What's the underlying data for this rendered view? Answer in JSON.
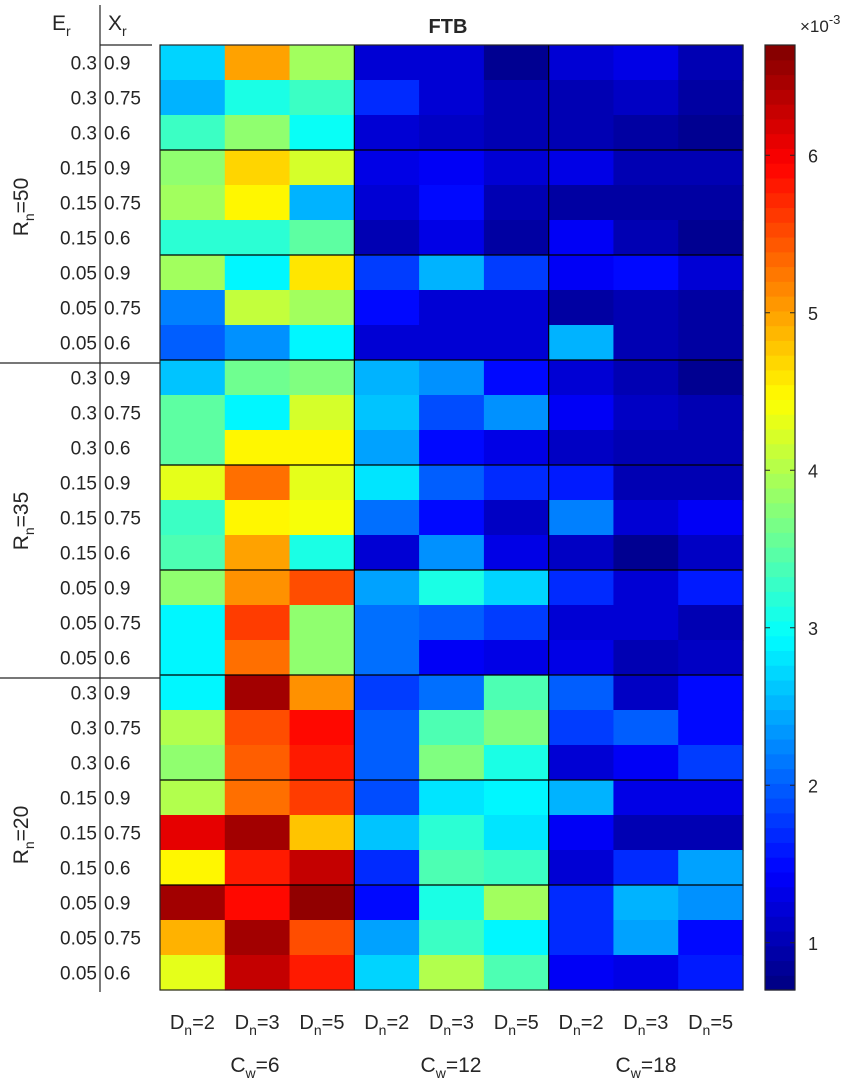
{
  "chart_data": {
    "type": "heatmap",
    "title": "FTB",
    "header_labels": {
      "e_r": "E",
      "e_r_sub": "r",
      "x_r": "X",
      "x_r_sub": "r"
    },
    "row_groups": [
      {
        "base": "R",
        "sub": "n",
        "value": "=50"
      },
      {
        "base": "R",
        "sub": "n",
        "value": "=35"
      },
      {
        "base": "R",
        "sub": "n",
        "value": "=20"
      }
    ],
    "rows": [
      {
        "e_r": "0.3",
        "x_r": "0.9"
      },
      {
        "e_r": "0.3",
        "x_r": "0.75"
      },
      {
        "e_r": "0.3",
        "x_r": "0.6"
      },
      {
        "e_r": "0.15",
        "x_r": "0.9"
      },
      {
        "e_r": "0.15",
        "x_r": "0.75"
      },
      {
        "e_r": "0.15",
        "x_r": "0.6"
      },
      {
        "e_r": "0.05",
        "x_r": "0.9"
      },
      {
        "e_r": "0.05",
        "x_r": "0.75"
      },
      {
        "e_r": "0.05",
        "x_r": "0.6"
      },
      {
        "e_r": "0.3",
        "x_r": "0.9"
      },
      {
        "e_r": "0.3",
        "x_r": "0.75"
      },
      {
        "e_r": "0.3",
        "x_r": "0.6"
      },
      {
        "e_r": "0.15",
        "x_r": "0.9"
      },
      {
        "e_r": "0.15",
        "x_r": "0.75"
      },
      {
        "e_r": "0.15",
        "x_r": "0.6"
      },
      {
        "e_r": "0.05",
        "x_r": "0.9"
      },
      {
        "e_r": "0.05",
        "x_r": "0.75"
      },
      {
        "e_r": "0.05",
        "x_r": "0.6"
      },
      {
        "e_r": "0.3",
        "x_r": "0.9"
      },
      {
        "e_r": "0.3",
        "x_r": "0.75"
      },
      {
        "e_r": "0.3",
        "x_r": "0.6"
      },
      {
        "e_r": "0.15",
        "x_r": "0.9"
      },
      {
        "e_r": "0.15",
        "x_r": "0.75"
      },
      {
        "e_r": "0.15",
        "x_r": "0.6"
      },
      {
        "e_r": "0.05",
        "x_r": "0.9"
      },
      {
        "e_r": "0.05",
        "x_r": "0.75"
      },
      {
        "e_r": "0.05",
        "x_r": "0.6"
      }
    ],
    "col_groups": [
      {
        "base": "C",
        "sub": "w",
        "value": "=6"
      },
      {
        "base": "C",
        "sub": "w",
        "value": "=12"
      },
      {
        "base": "C",
        "sub": "w",
        "value": "=18"
      }
    ],
    "columns": [
      {
        "base": "D",
        "sub": "n",
        "value": "=2"
      },
      {
        "base": "D",
        "sub": "n",
        "value": "=3"
      },
      {
        "base": "D",
        "sub": "n",
        "value": "=5"
      },
      {
        "base": "D",
        "sub": "n",
        "value": "=2"
      },
      {
        "base": "D",
        "sub": "n",
        "value": "=3"
      },
      {
        "base": "D",
        "sub": "n",
        "value": "=5"
      },
      {
        "base": "D",
        "sub": "n",
        "value": "=2"
      },
      {
        "base": "D",
        "sub": "n",
        "value": "=3"
      },
      {
        "base": "D",
        "sub": "n",
        "value": "=5"
      }
    ],
    "values": [
      [
        2.7,
        5.0,
        3.9,
        1.2,
        1.2,
        0.8,
        1.2,
        1.3,
        1.0
      ],
      [
        2.5,
        3.1,
        3.3,
        1.7,
        1.2,
        1.0,
        1.0,
        1.1,
        0.9
      ],
      [
        3.3,
        3.8,
        3.0,
        1.2,
        1.1,
        1.0,
        1.0,
        0.9,
        0.8
      ],
      [
        3.8,
        4.7,
        4.2,
        1.3,
        1.4,
        1.2,
        1.3,
        1.0,
        1.0
      ],
      [
        3.9,
        4.5,
        2.5,
        1.2,
        1.5,
        1.0,
        0.9,
        0.9,
        0.9
      ],
      [
        3.2,
        3.2,
        3.5,
        1.0,
        1.3,
        0.9,
        1.4,
        1.0,
        0.8
      ],
      [
        3.9,
        2.9,
        4.6,
        1.8,
        2.5,
        1.8,
        1.4,
        1.5,
        1.2
      ],
      [
        2.2,
        4.1,
        3.9,
        1.5,
        1.2,
        1.2,
        0.9,
        1.0,
        0.9
      ],
      [
        2.0,
        2.3,
        2.9,
        1.2,
        1.2,
        1.2,
        2.5,
        1.0,
        0.9
      ],
      [
        2.6,
        3.6,
        3.7,
        2.5,
        2.3,
        1.5,
        1.2,
        1.0,
        0.8
      ],
      [
        3.5,
        2.9,
        4.2,
        2.6,
        1.9,
        2.3,
        1.4,
        1.1,
        1.0
      ],
      [
        3.5,
        4.5,
        4.5,
        2.4,
        1.5,
        1.3,
        1.1,
        1.0,
        1.0
      ],
      [
        4.3,
        5.3,
        4.3,
        2.8,
        2.0,
        1.7,
        1.6,
        1.0,
        1.0
      ],
      [
        3.3,
        4.5,
        4.4,
        2.1,
        1.5,
        1.1,
        2.2,
        1.2,
        1.4
      ],
      [
        3.4,
        5.0,
        3.1,
        1.2,
        2.3,
        1.3,
        1.1,
        0.8,
        1.1
      ],
      [
        3.8,
        5.1,
        5.5,
        2.4,
        3.1,
        2.7,
        1.7,
        1.2,
        1.6
      ],
      [
        2.9,
        5.6,
        3.8,
        2.1,
        2.0,
        1.8,
        1.2,
        1.2,
        1.0
      ],
      [
        2.9,
        5.3,
        3.8,
        2.1,
        1.4,
        1.3,
        1.3,
        1.0,
        1.1
      ],
      [
        2.9,
        6.5,
        5.1,
        1.8,
        2.1,
        3.4,
        2.0,
        1.1,
        1.5
      ],
      [
        4.0,
        5.5,
        5.9,
        2.0,
        3.4,
        3.7,
        1.8,
        2.0,
        1.5
      ],
      [
        3.8,
        5.4,
        5.8,
        2.0,
        3.7,
        3.1,
        1.2,
        1.4,
        1.8
      ],
      [
        4.0,
        5.3,
        5.6,
        1.9,
        2.8,
        2.9,
        2.5,
        1.3,
        1.3
      ],
      [
        6.1,
        6.5,
        4.8,
        2.6,
        3.2,
        2.8,
        1.4,
        1.0,
        1.0
      ],
      [
        4.5,
        5.8,
        6.3,
        1.7,
        3.4,
        3.3,
        1.2,
        1.7,
        2.4
      ],
      [
        6.5,
        5.9,
        6.6,
        1.5,
        3.1,
        3.9,
        1.7,
        2.5,
        2.3
      ],
      [
        4.9,
        6.5,
        5.5,
        2.4,
        3.3,
        2.9,
        1.7,
        2.4,
        1.5
      ],
      [
        4.3,
        6.3,
        5.8,
        2.7,
        4.0,
        3.4,
        1.4,
        1.3,
        1.6
      ]
    ],
    "colorbar": {
      "colormap": "jet",
      "range": [
        0.7,
        6.7
      ],
      "ticks": [
        "1",
        "2",
        "3",
        "4",
        "5",
        "6"
      ],
      "tick_values": [
        1,
        2,
        3,
        4,
        5,
        6
      ],
      "multiplier_base": "×10",
      "multiplier_exp": "-3"
    }
  }
}
